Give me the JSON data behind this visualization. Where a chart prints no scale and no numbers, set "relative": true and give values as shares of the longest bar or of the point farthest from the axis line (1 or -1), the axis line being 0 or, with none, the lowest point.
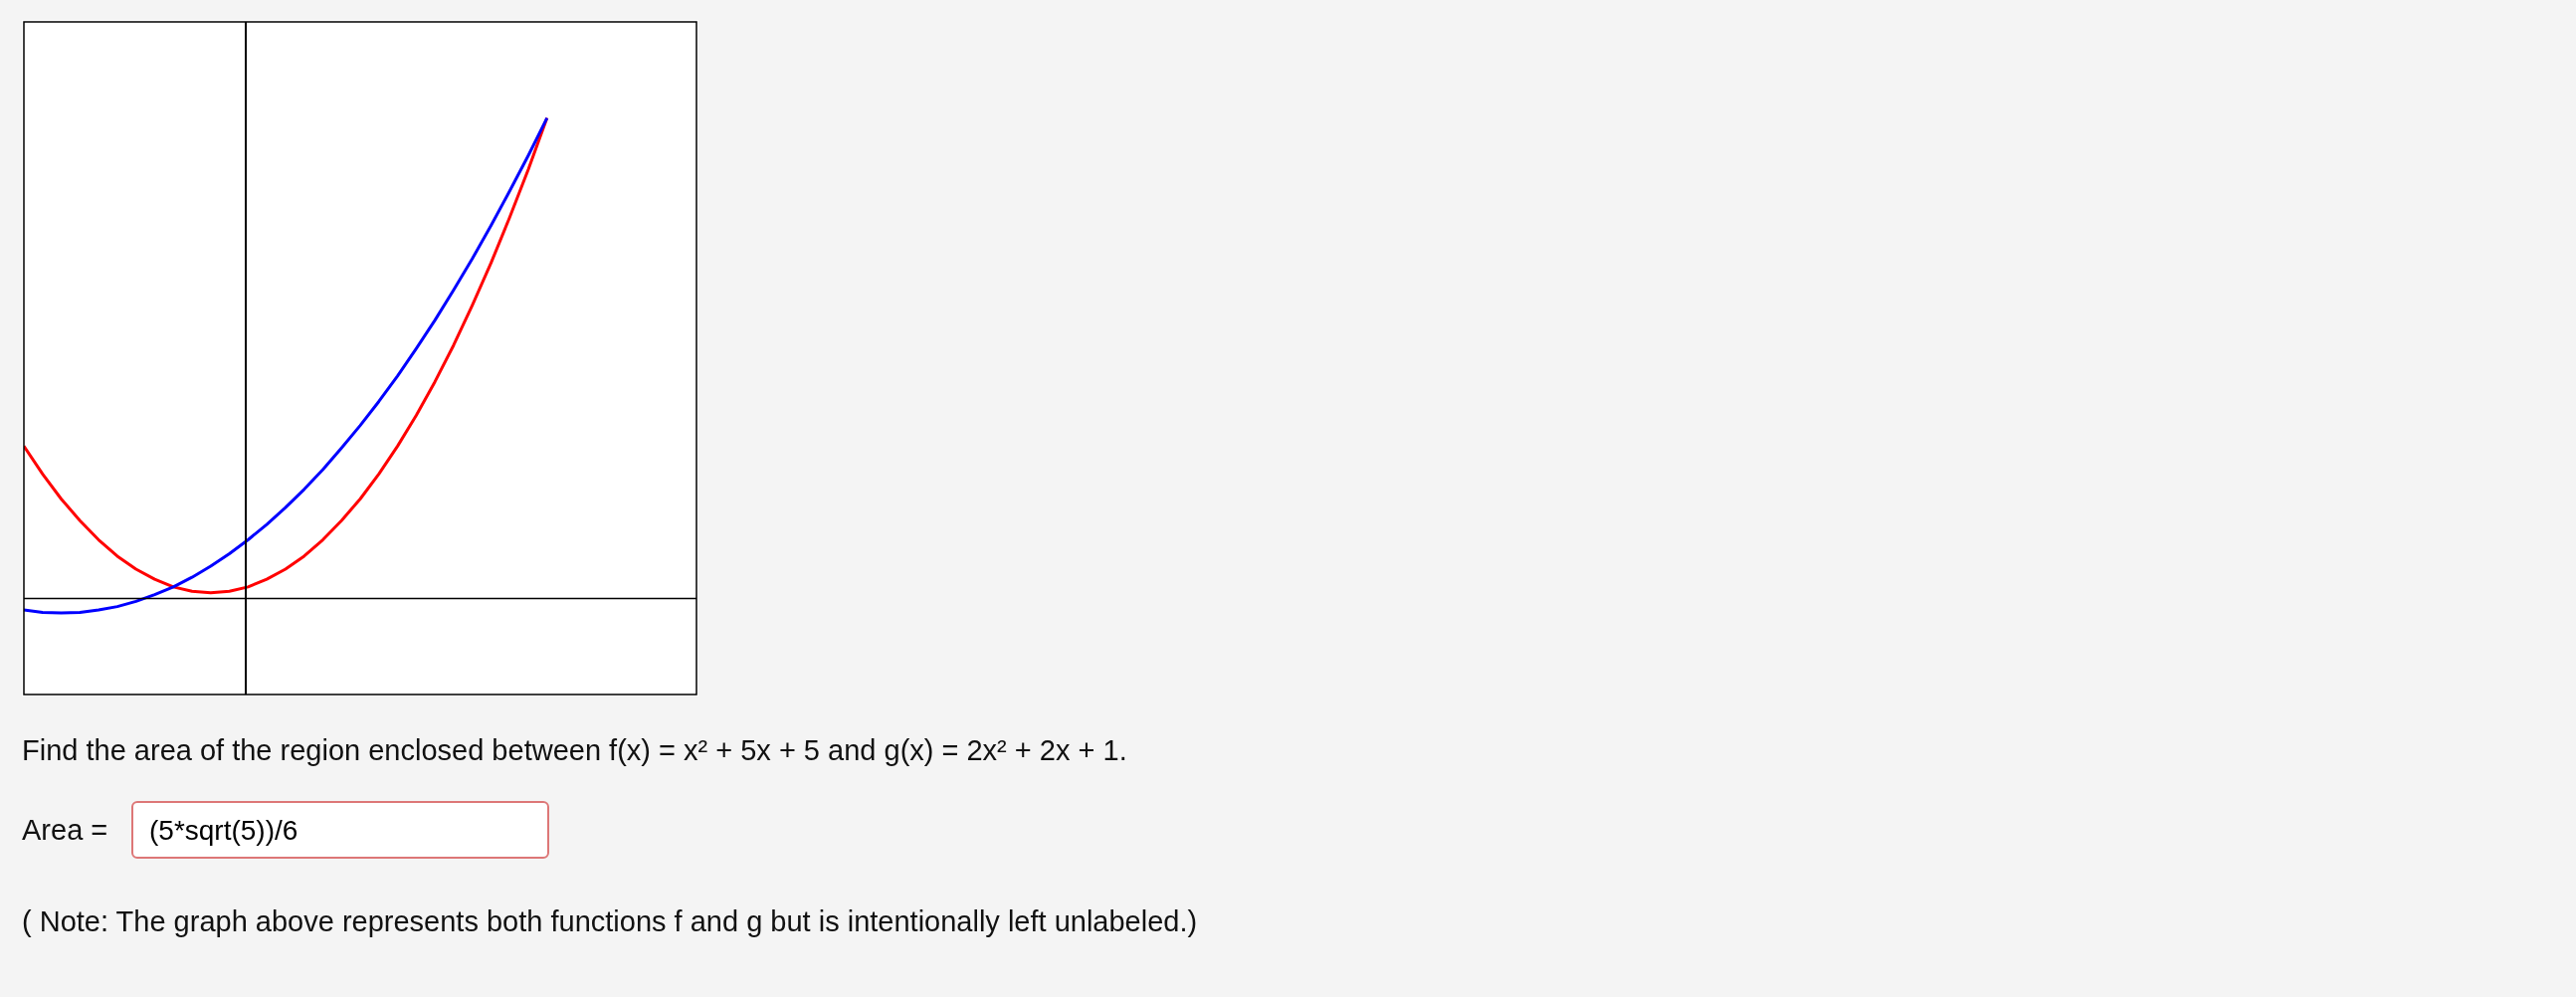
{
  "chart_data": {
    "type": "line",
    "relative": true,
    "legend": false,
    "marker": "none",
    "line_style": "solid",
    "categories": [
      null,
      null,
      null,
      null,
      null,
      null,
      null,
      null,
      null,
      null,
      null,
      null,
      null,
      null,
      null,
      null,
      null,
      null,
      null,
      null,
      null,
      null,
      null,
      null,
      null,
      null,
      null,
      null,
      null,
      null,
      null,
      null,
      null,
      null,
      null,
      null,
      null
    ],
    "series": [
      {
        "color": "#0000ff",
        "values": [
          -0.024,
          -0.029,
          -0.03,
          -0.029,
          -0.024,
          -0.017,
          -0.006,
          0.008,
          0.024,
          0.044,
          0.067,
          0.093,
          0.122,
          0.154,
          0.189,
          0.227,
          0.268,
          0.313,
          0.36,
          0.41,
          0.463,
          0.52,
          0.579,
          0.642,
          0.707,
          0.776,
          0.848,
          0.922,
          1,
          null,
          null,
          null,
          null,
          null,
          null,
          null,
          null
        ]
      },
      {
        "color": "#ff0000",
        "values": [
          0.317,
          0.259,
          0.207,
          0.162,
          0.122,
          0.088,
          0.061,
          0.04,
          0.024,
          0.015,
          0.012,
          0.015,
          0.024,
          0.04,
          0.061,
          0.088,
          0.122,
          0.162,
          0.207,
          0.259,
          0.317,
          0.381,
          0.451,
          0.527,
          0.61,
          0.698,
          0.793,
          0.893,
          1,
          null,
          null,
          null,
          null,
          null,
          null,
          null,
          null
        ]
      }
    ],
    "annotations": [
      "Find the area of the region enclosed between f(x) = x² + 5x + 5 and g(x) = 2x² + 2x + 1.",
      "Area =",
      "(5*sqrt(5))/6",
      "( Note: The graph above represents both functions f and g but is intentionally left unlabeled.)"
    ]
  }
}
